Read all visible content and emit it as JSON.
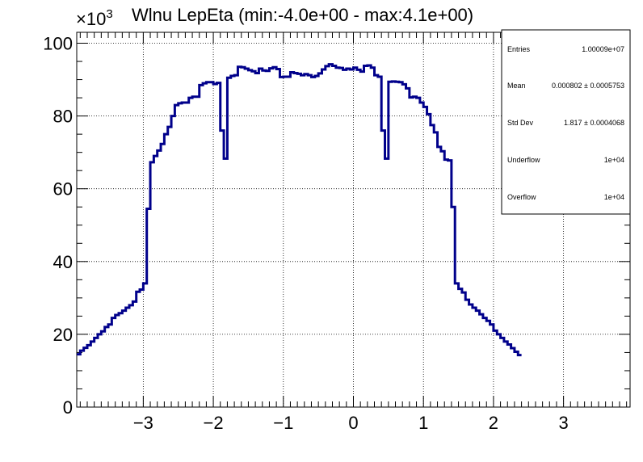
{
  "chart_data": {
    "type": "histogram",
    "title": "Wlnu LepEta (min:-4.0e+00 - max:4.1e+00)",
    "y_multiplier_base": "×10",
    "y_multiplier_exp": "3",
    "xlim": [
      -3.95,
      3.95
    ],
    "ylim": [
      0,
      103
    ],
    "x_ticks": [
      -3,
      -2,
      -1,
      0,
      1,
      2,
      3
    ],
    "x_tick_labels": [
      "−3",
      "−2",
      "−1",
      "0",
      "1",
      "2",
      "3"
    ],
    "y_ticks": [
      0,
      20,
      40,
      60,
      80,
      100
    ],
    "y_tick_labels": [
      "0",
      "20",
      "40",
      "60",
      "80",
      "100"
    ],
    "grid": true,
    "line_color": "#00008b",
    "bin_width": 0.05,
    "edges_start": -3.95,
    "values": [
      14.5,
      15.5,
      16.3,
      17,
      18,
      19,
      20,
      20.8,
      22,
      22.7,
      24.5,
      25.3,
      25.8,
      26.5,
      27.3,
      28,
      29,
      31.7,
      32.3,
      34,
      54.5,
      67.3,
      69,
      70.5,
      72.3,
      75,
      77,
      80,
      83,
      83.5,
      83.7,
      83.7,
      85,
      85.3,
      85.3,
      88.5,
      89,
      89.3,
      89.3,
      88.8,
      89.1,
      76,
      68.3,
      90.5,
      91,
      91.2,
      93.5,
      93.4,
      93,
      92.6,
      92.3,
      91.8,
      93,
      92.5,
      92.4,
      93.1,
      93.4,
      92.9,
      90.7,
      90.8,
      90.8,
      92,
      91.8,
      91.6,
      91.2,
      91.5,
      91.2,
      90.7,
      91,
      91.7,
      92.8,
      93.7,
      94.2,
      93.8,
      93.3,
      93.2,
      92.7,
      93,
      92.8,
      93.3,
      92.7,
      92.2,
      93.8,
      93.9,
      93.3,
      91.2,
      90.8,
      76,
      68.3,
      89.4,
      89.5,
      89.4,
      89.3,
      88.7,
      87.6,
      85.1,
      85.3,
      85,
      83.7,
      82.5,
      80.5,
      77.5,
      75.5,
      71.5,
      70.3,
      68,
      67.8,
      55,
      34,
      32.5,
      31.5,
      29.5,
      28.2,
      27.3,
      26.5,
      25.5,
      24.5,
      23.7,
      22.7,
      21,
      20,
      19,
      18,
      17.2,
      16.2,
      15.2,
      14.3
    ]
  },
  "stats_box": {
    "rows": [
      {
        "label": "Entries",
        "value": "1.00009e+07"
      },
      {
        "label": "Mean",
        "value": "0.000802 ± 0.0005753"
      },
      {
        "label": "Std Dev",
        "value": "1.817 ± 0.0004068"
      },
      {
        "label": "Underflow",
        "value": "1e+04"
      },
      {
        "label": "Overflow",
        "value": "1e+04"
      }
    ]
  }
}
